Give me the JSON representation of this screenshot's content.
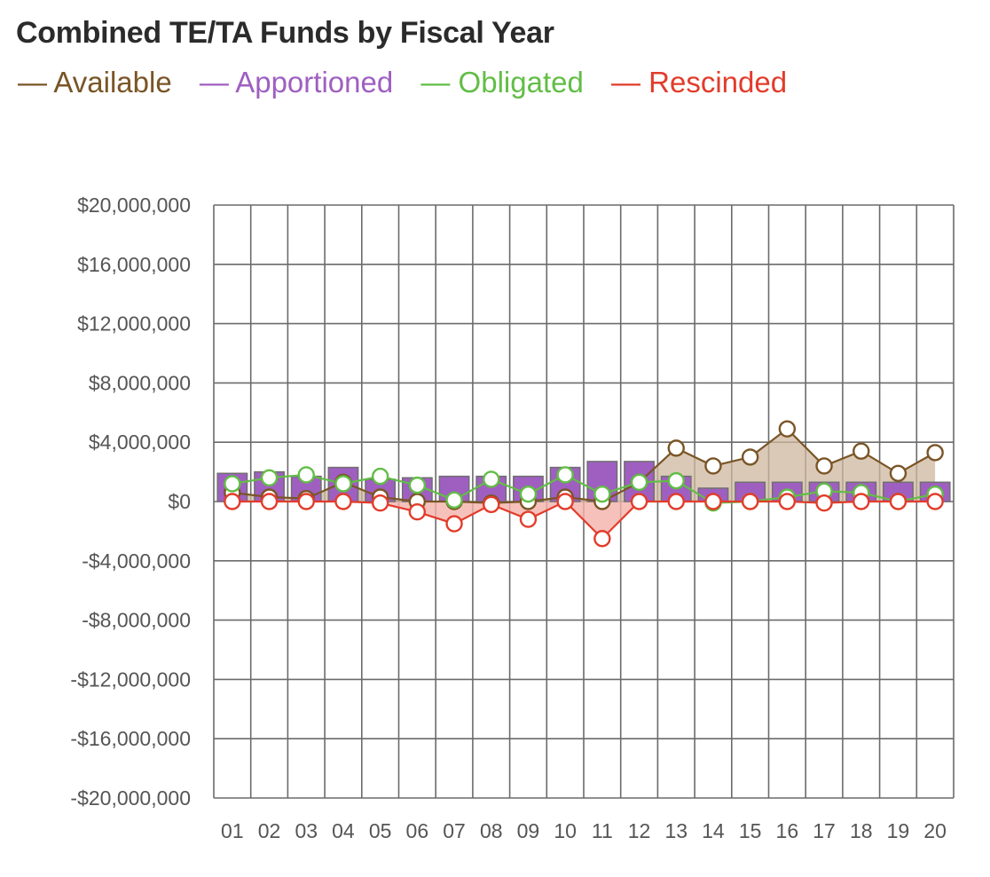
{
  "chart_data": {
    "type": "bar+line",
    "title": "Combined TE/TA Funds by Fiscal Year",
    "categories": [
      "01",
      "02",
      "03",
      "04",
      "05",
      "06",
      "07",
      "08",
      "09",
      "10",
      "11",
      "12",
      "13",
      "14",
      "15",
      "16",
      "17",
      "18",
      "19",
      "20"
    ],
    "ylim": [
      -20000000,
      20000000
    ],
    "yticks": [
      20000000,
      16000000,
      12000000,
      8000000,
      4000000,
      0,
      -4000000,
      -8000000,
      -12000000,
      -16000000,
      -20000000
    ],
    "ytick_labels": [
      "$20,000,000",
      "$16,000,000",
      "$12,000,000",
      "$8,000,000",
      "$4,000,000",
      "$0",
      "-$4,000,000",
      "-$8,000,000",
      "-$12,000,000",
      "-$16,000,000",
      "-$20,000,000"
    ],
    "grid": true,
    "legend_position": "top-left",
    "series": [
      {
        "name": "Available",
        "kind": "line-area",
        "color": "#7a5526",
        "values": [
          600000,
          300000,
          200000,
          1300000,
          300000,
          0,
          0,
          -100000,
          0,
          300000,
          0,
          1300000,
          3600000,
          2400000,
          3000000,
          4900000,
          2400000,
          3400000,
          1900000,
          3300000
        ]
      },
      {
        "name": "Apportioned",
        "kind": "bar",
        "color": "#9f5fc0",
        "values": [
          1900000,
          2000000,
          1700000,
          2300000,
          1500000,
          1600000,
          1700000,
          1700000,
          1700000,
          2300000,
          2700000,
          2700000,
          1700000,
          900000,
          1300000,
          1300000,
          1300000,
          1300000,
          1300000,
          1300000
        ]
      },
      {
        "name": "Obligated",
        "kind": "line",
        "color": "#62bd46",
        "values": [
          1200000,
          1600000,
          1800000,
          1200000,
          1700000,
          1100000,
          100000,
          1500000,
          500000,
          1800000,
          500000,
          1300000,
          1400000,
          -100000,
          0,
          300000,
          700000,
          600000,
          0,
          500000
        ]
      },
      {
        "name": "Rescinded",
        "kind": "line-area",
        "color": "#e23c2b",
        "values": [
          0,
          0,
          0,
          0,
          -100000,
          -700000,
          -1500000,
          -200000,
          -1200000,
          0,
          -2500000,
          0,
          0,
          0,
          0,
          0,
          -100000,
          0,
          0,
          0
        ]
      }
    ]
  }
}
